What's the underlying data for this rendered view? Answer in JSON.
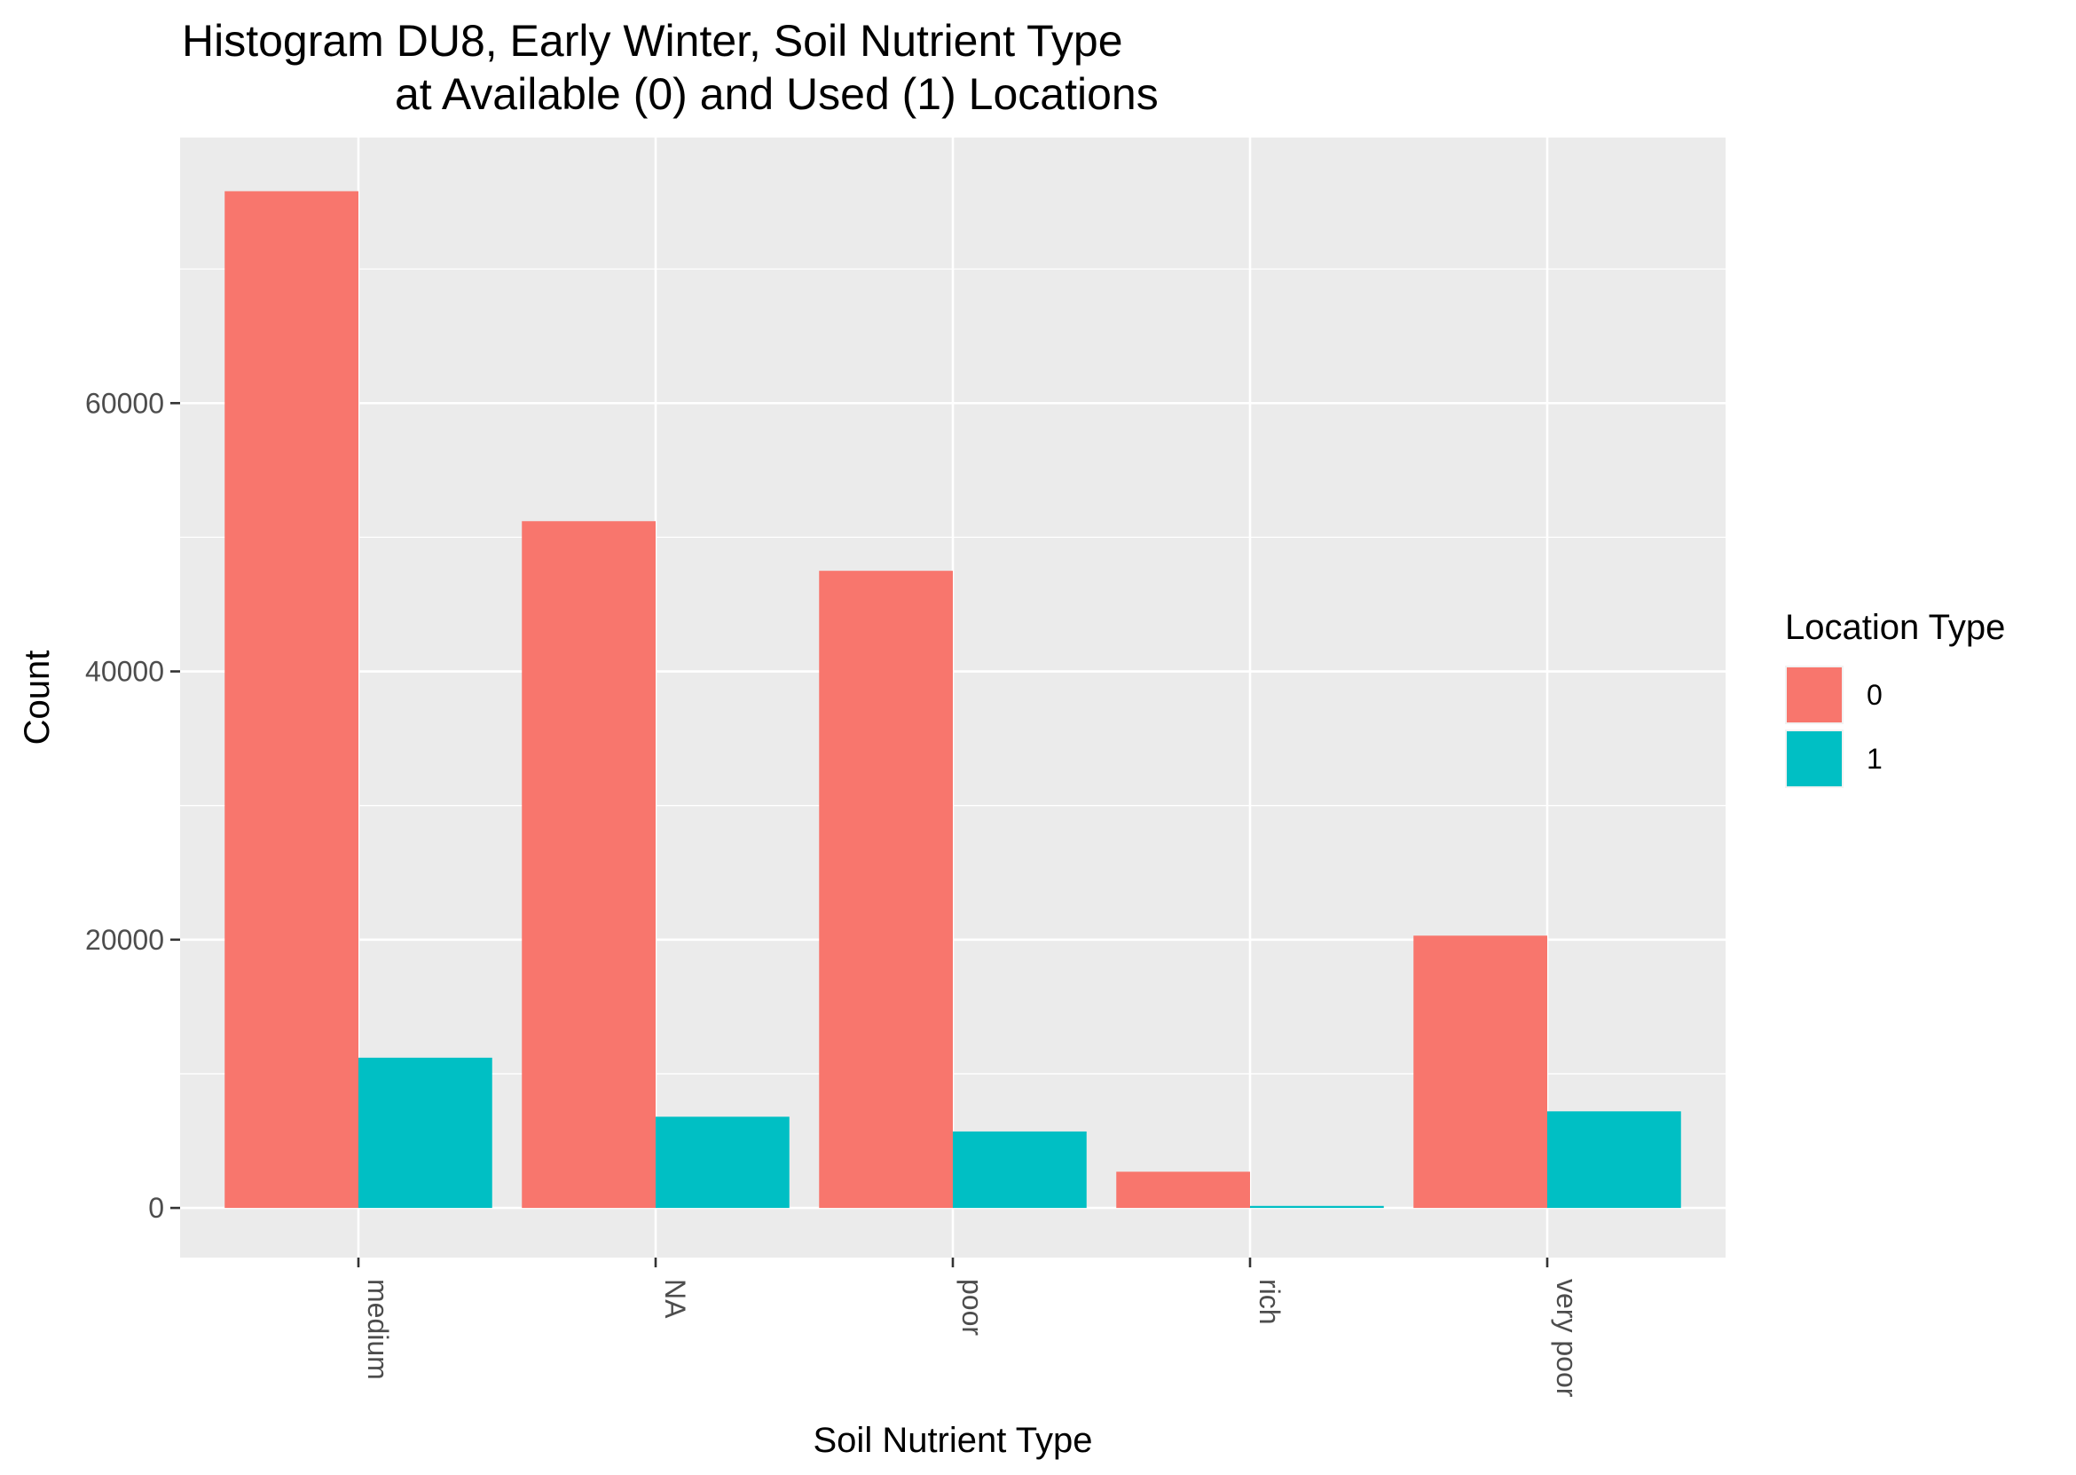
{
  "chart_data": {
    "type": "bar",
    "title_line1": "Histogram DU8, Early Winter, Soil Nutrient Type",
    "title_line2": "at Available (0) and Used (1) Locations",
    "xlabel": "Soil Nutrient Type",
    "ylabel": "Count",
    "categories": [
      "medium",
      "NA",
      "poor",
      "rich",
      "very poor"
    ],
    "series": [
      {
        "name": "0",
        "color": "#F8766D",
        "values": [
          75800,
          51200,
          47500,
          2700,
          20300
        ]
      },
      {
        "name": "1",
        "color": "#00BFC4",
        "values": [
          11200,
          6800,
          5700,
          150,
          7200
        ]
      }
    ],
    "yticks": [
      0,
      20000,
      40000,
      60000
    ],
    "ytick_labels": [
      "0",
      "20000",
      "40000",
      "60000"
    ],
    "ylim": [
      -3700,
      79800
    ],
    "grid": true,
    "panel_color": "#EBEBEB",
    "legend": {
      "title": "Location Type",
      "position": "right",
      "labels": [
        "0",
        "1"
      ]
    }
  }
}
